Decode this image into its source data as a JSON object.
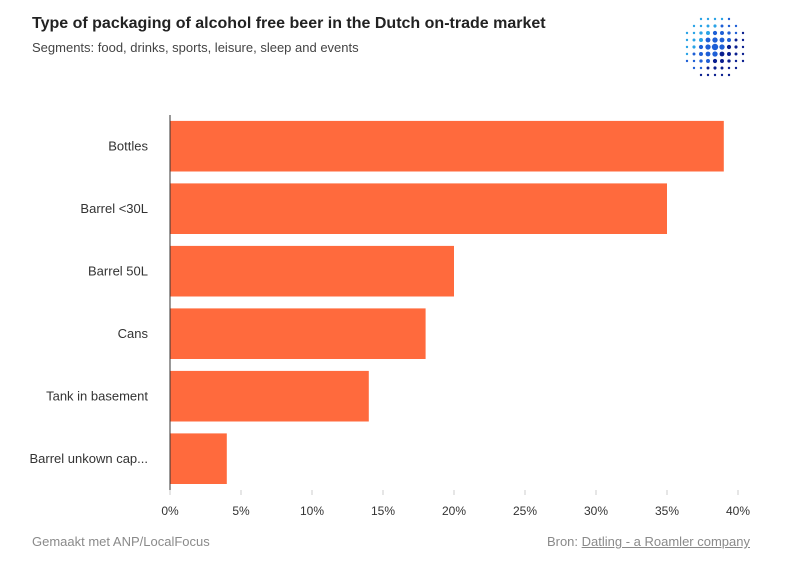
{
  "header": {
    "title": "Type of packaging of alcohol free beer in the Dutch on-trade market",
    "subtitle": "Segments: food, drinks, sports, leisure, sleep and events"
  },
  "footer": {
    "made_with": "Gemaakt met ANP/LocalFocus",
    "source_prefix": "Bron:",
    "source_link": "Datling - a Roamler company"
  },
  "logo": {
    "icon": "dotted-sphere-logo",
    "colors": [
      "#0a1f8f",
      "#1e5fd6",
      "#29a3e6"
    ]
  },
  "colors": {
    "bar": "#ff6a3d",
    "axis": "#333333",
    "tick": "#cccccc"
  },
  "chart_data": {
    "type": "bar",
    "orientation": "horizontal",
    "categories": [
      "Bottles",
      "Barrel <30L",
      "Barrel 50L",
      "Cans",
      "Tank in basement",
      "Barrel unkown cap..."
    ],
    "values": [
      39,
      35,
      20,
      18,
      14,
      4
    ],
    "xlim": [
      0,
      40
    ],
    "xticks": [
      0,
      5,
      10,
      15,
      20,
      25,
      30,
      35,
      40
    ],
    "tick_labels": [
      "0%",
      "5%",
      "10%",
      "15%",
      "20%",
      "25%",
      "30%",
      "35%",
      "40%"
    ],
    "grid": false
  }
}
